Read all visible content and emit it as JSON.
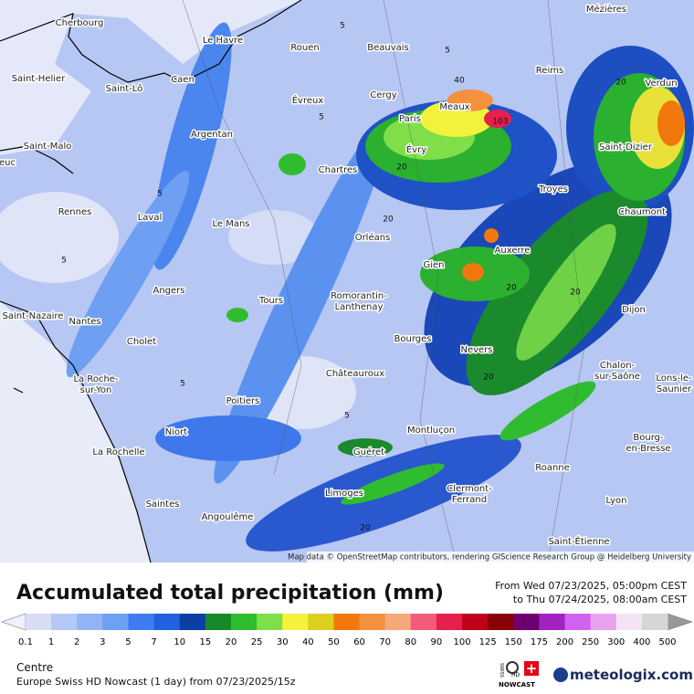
{
  "map": {
    "cities": [
      [
        "Cherbourg"
      ],
      [
        "Le Havre"
      ],
      [
        "Rouen"
      ],
      [
        "Beauvais"
      ],
      [
        "Mézières"
      ],
      [
        "Reims"
      ],
      [
        "Verdun"
      ],
      [
        "Saint-Helier"
      ],
      [
        "Saint-Lô"
      ],
      [
        "Caen"
      ],
      [
        "Évreux"
      ],
      [
        "Cergy"
      ],
      [
        "Meaux"
      ],
      [
        "Paris"
      ],
      [
        "Évry"
      ],
      [
        "Saint-Malo"
      ],
      [
        "Argentan"
      ],
      [
        "Saint-Dizier"
      ],
      [
        "Chartres"
      ],
      [
        "Troyes"
      ],
      [
        "Rennes"
      ],
      [
        "Laval"
      ],
      [
        "Le Mans"
      ],
      [
        "Orléans"
      ],
      [
        "Chaumont"
      ],
      [
        "Auxerre"
      ],
      [
        "Gien"
      ],
      [
        "Angers"
      ],
      [
        "Tours"
      ],
      [
        "Romorantin-",
        "Lanthenay"
      ],
      [
        "Dijon"
      ],
      [
        "Saint-Nazaire"
      ],
      [
        "Nantes"
      ],
      [
        "Cholet"
      ],
      [
        "Bourges"
      ],
      [
        "Nevers"
      ],
      [
        "Châteauroux"
      ],
      [
        "La Roche-",
        "sur-Yon"
      ],
      [
        "Chalon-",
        "sur-Saône"
      ],
      [
        "Lons-le-",
        "Saunier"
      ],
      [
        "Poitiers"
      ],
      [
        "Niort"
      ],
      [
        "Montluçon"
      ],
      [
        "Bourg-",
        "en-Bresse"
      ],
      [
        "La Rochelle"
      ],
      [
        "Guéret"
      ],
      [
        "Roanne"
      ],
      [
        "Saintes"
      ],
      [
        "Limoges"
      ],
      [
        "Clermont-",
        "Ferrand"
      ],
      [
        "Lyon"
      ],
      [
        "Angoulême"
      ],
      [
        "Saint-Étienne"
      ],
      [
        "euc"
      ]
    ],
    "contour_labels": [
      "40",
      "103",
      "20",
      "20",
      "20",
      "20",
      "20",
      "5",
      "5",
      "5",
      "5",
      "5",
      "5",
      "5",
      "20",
      "20"
    ],
    "attribution": "Map data © OpenStreetMap contributors, rendering GIScience Research Group @ Heidelberg University"
  },
  "header": {
    "title": "Accumulated total precipitation (mm)",
    "from": "From Wed 07/23/2025, 05:00pm CEST",
    "to": "to Thu 07/24/2025, 08:00am CEST"
  },
  "legend": {
    "labels": [
      0.1,
      1,
      2,
      3,
      5,
      7,
      10,
      15,
      20,
      25,
      30,
      40,
      50,
      60,
      70,
      80,
      90,
      100,
      125,
      150,
      175,
      200,
      250,
      300,
      400,
      500
    ],
    "colors": [
      "#d8dcf5",
      "#b5c8f6",
      "#90b4f5",
      "#6ea0f3",
      "#3f7cef",
      "#2160e0",
      "#0c3ea6",
      "#168a28",
      "#2fbd2f",
      "#7fdf48",
      "#f3f33c",
      "#ddcf1e",
      "#f2780e",
      "#f4913f",
      "#f5a87a",
      "#f45a7c",
      "#e4204c",
      "#c00018",
      "#8a0008",
      "#6e0070",
      "#a322c2",
      "#d062ef",
      "#e8a2f0",
      "#f6e2f6",
      "#d6d6d6"
    ]
  },
  "footer": {
    "region": "Centre",
    "model": "Europe Swiss HD Nowcast (1 day) from 07/23/2025/15z",
    "badge_top": "SWISS",
    "badge_hd": "HD",
    "badge_bottom": "NOWCAST",
    "brand": "meteologix.com"
  }
}
